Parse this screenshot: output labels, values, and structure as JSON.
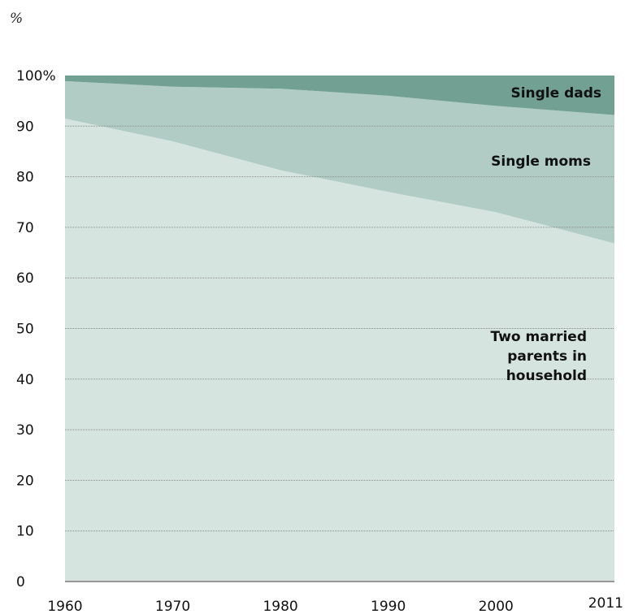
{
  "unit_label": "%",
  "chart_data": {
    "type": "area",
    "stacked": true,
    "title": "",
    "xlabel": "",
    "ylabel": "",
    "x": [
      1960,
      1970,
      1980,
      1990,
      2000,
      2011
    ],
    "x_tick_labels": [
      "1960",
      "1970",
      "1980",
      "1990",
      "2000",
      "2011"
    ],
    "y_tick_labels": [
      "0",
      "10",
      "20",
      "30",
      "40",
      "50",
      "60",
      "70",
      "80",
      "90",
      "100%"
    ],
    "y_ticks": [
      0,
      10,
      20,
      30,
      40,
      50,
      60,
      70,
      80,
      90,
      100
    ],
    "ylim": [
      0,
      100
    ],
    "xlim": [
      1960,
      2011
    ],
    "grid": true,
    "series": [
      {
        "name": "Two married parents in household",
        "values": [
          91.5,
          87,
          81.3,
          77,
          73,
          66.8
        ],
        "color": "#d6e4e0"
      },
      {
        "name": "Single moms",
        "values": [
          7.4,
          10.8,
          16.1,
          19,
          21,
          25.4
        ],
        "color": "#b0ccc5"
      },
      {
        "name": "Single dads",
        "values": [
          1.1,
          2.2,
          2.6,
          4,
          6,
          7.8
        ],
        "color": "#72a093"
      }
    ],
    "annotations": [
      {
        "lines": [
          "Single dads"
        ]
      },
      {
        "lines": [
          "Single moms"
        ]
      },
      {
        "lines": [
          "Two married",
          "parents in",
          "household"
        ]
      }
    ]
  }
}
